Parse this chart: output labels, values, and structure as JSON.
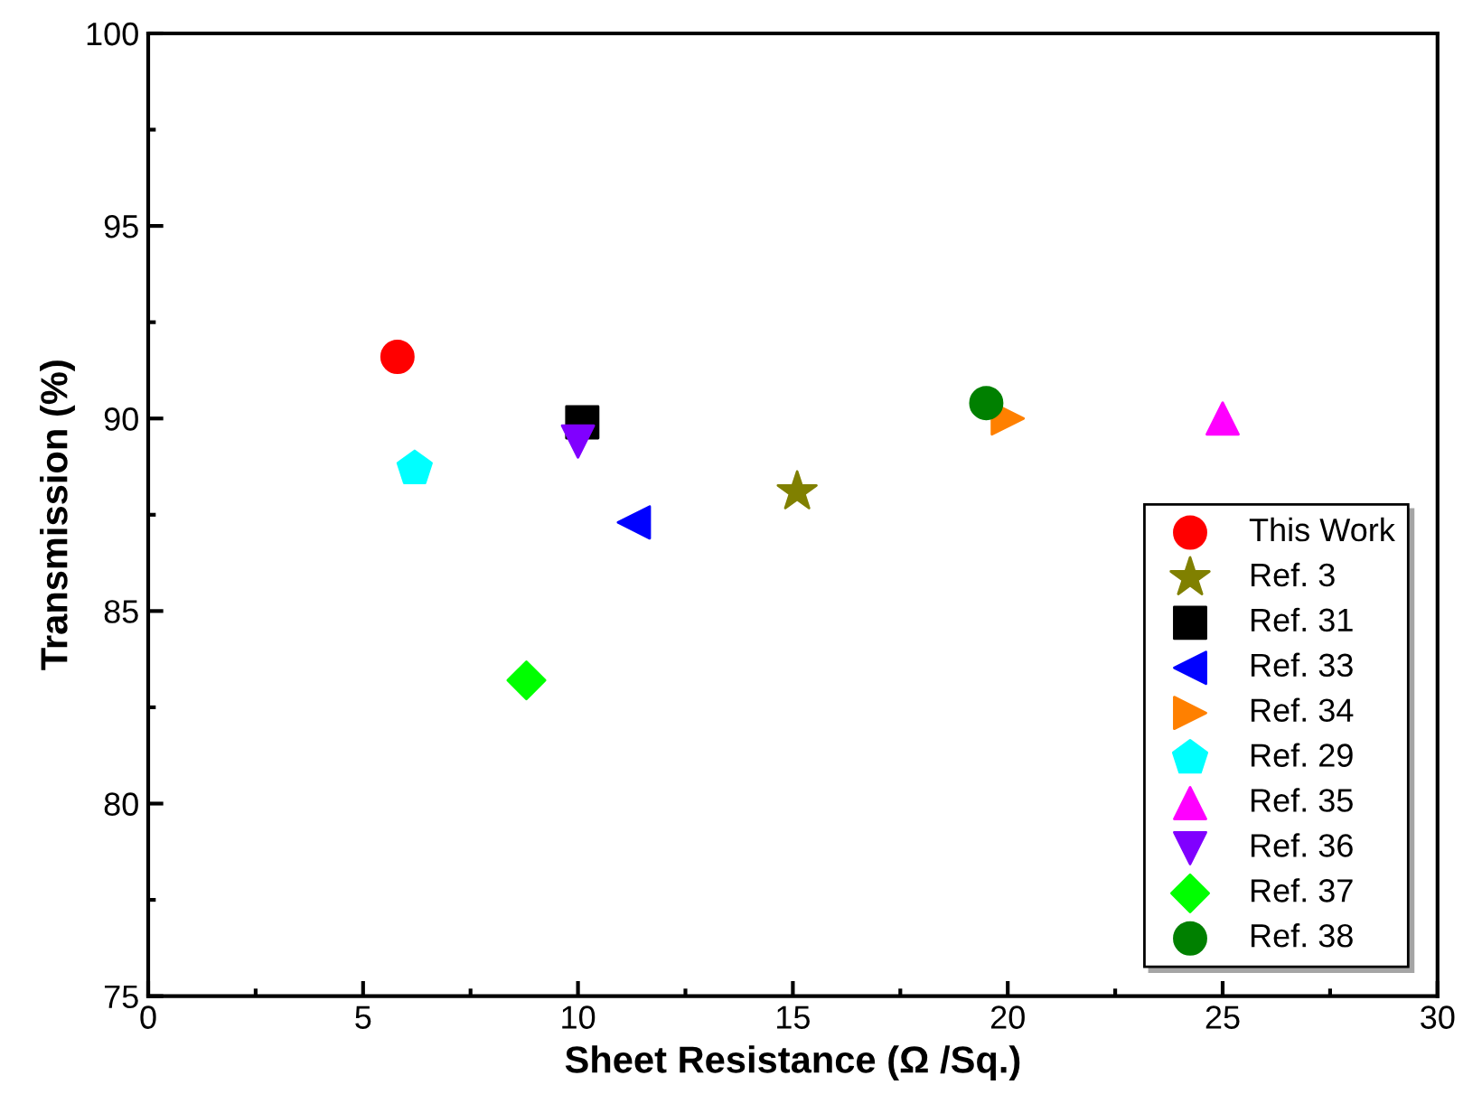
{
  "chart_data": {
    "type": "scatter",
    "xlabel": "Sheet Resistance (Ω /Sq.)",
    "ylabel": "Transmission (%)",
    "xlim": [
      0,
      30
    ],
    "xticks": [
      0,
      5,
      10,
      15,
      20,
      25,
      30
    ],
    "ylim": [
      75,
      100
    ],
    "yticks": [
      75,
      80,
      85,
      90,
      95,
      100
    ],
    "grid": false,
    "legend": "bottom right",
    "series": [
      {
        "name": "This Work",
        "color": "#ff0000",
        "marker": "circle",
        "x": [
          5.8
        ],
        "values": [
          91.6
        ]
      },
      {
        "name": "Ref. 3",
        "color": "#808000",
        "marker": "star",
        "x": [
          15.1
        ],
        "values": [
          88.1
        ]
      },
      {
        "name": "Ref. 31",
        "color": "#000000",
        "marker": "square",
        "x": [
          10.1
        ],
        "values": [
          89.9
        ]
      },
      {
        "name": "Ref. 33",
        "color": "#0000ff",
        "marker": "triangle_left",
        "x": [
          11.3
        ],
        "values": [
          87.3
        ]
      },
      {
        "name": "Ref. 34",
        "color": "#ff8000",
        "marker": "triangle_right",
        "x": [
          20.0
        ],
        "values": [
          90.0
        ]
      },
      {
        "name": "Ref. 29",
        "color": "#00ffff",
        "x": [
          6.2
        ],
        "values": [
          88.7
        ]
      },
      {
        "name": "Ref. 35",
        "color": "#ff00ff",
        "marker": "triangle",
        "x": [
          25.0
        ],
        "values": [
          90.0
        ]
      },
      {
        "name": "Ref. 36",
        "color": "#8000ff",
        "marker": "triangle_down",
        "x": [
          10.0
        ],
        "values": [
          89.4
        ]
      },
      {
        "name": "Ref. 37",
        "color": "#00ff00",
        "marker": "diamond",
        "x": [
          8.8
        ],
        "values": [
          83.2
        ]
      },
      {
        "name": "Ref. 38",
        "color": "#008000",
        "marker": "circle",
        "x": [
          19.5
        ],
        "values": [
          90.4
        ]
      }
    ]
  }
}
